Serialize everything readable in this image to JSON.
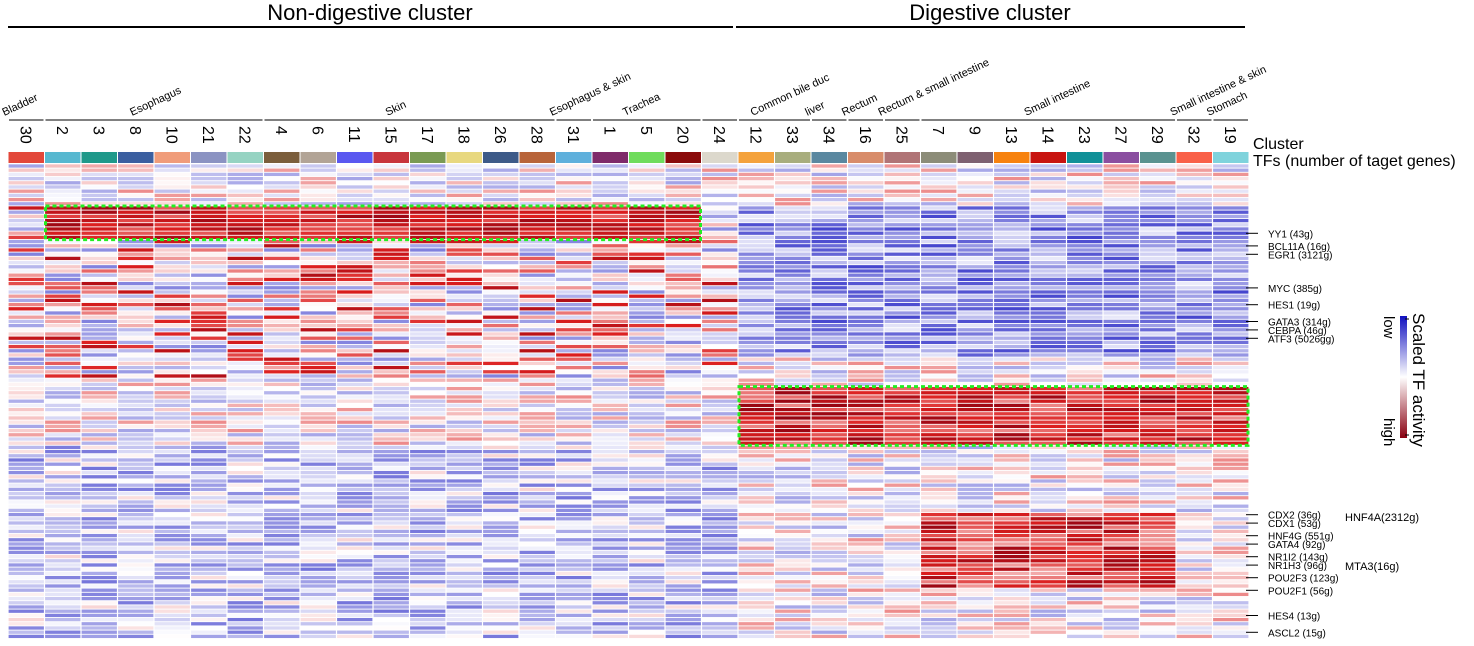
{
  "groups": {
    "nondigestive": "Non-digestive cluster",
    "digestive": "Digestive cluster"
  },
  "row_labels": {
    "cluster": "Cluster",
    "tfs": "TFs (number of taget genes)"
  },
  "tissues": [
    {
      "label": "Bladder",
      "start": 0,
      "end": 0
    },
    {
      "label": "Esophagus",
      "start": 1,
      "end": 6
    },
    {
      "label": "Skin",
      "start": 7,
      "end": 14
    },
    {
      "label": "Esophagus & skin",
      "start": 15,
      "end": 15
    },
    {
      "label": "Trachea",
      "start": 16,
      "end": 18
    },
    {
      "label": "",
      "start": 19,
      "end": 19
    },
    {
      "label": "Common bile duc",
      "start": 20,
      "end": 21
    },
    {
      "label": "liver",
      "start": 22,
      "end": 22
    },
    {
      "label": "Rectum",
      "start": 23,
      "end": 23
    },
    {
      "label": "Rectum & small intestine",
      "start": 24,
      "end": 24
    },
    {
      "label": "Small intestine",
      "start": 25,
      "end": 31
    },
    {
      "label": "Small intestine & skin",
      "start": 32,
      "end": 32
    },
    {
      "label": "Stomach",
      "start": 33,
      "end": 33
    }
  ],
  "tf_labels": [
    {
      "label": "YY1 (43g)",
      "row": 16
    },
    {
      "label": "BCL11A (16g)",
      "row": 19
    },
    {
      "label": "EGR1 (3121g)",
      "row": 21
    },
    {
      "label": "MYC (385g)",
      "row": 29
    },
    {
      "label": "HES1 (19g)",
      "row": 33
    },
    {
      "label": "GATA3 (314g)",
      "row": 37
    },
    {
      "label": "CEBPA (46g)",
      "row": 39
    },
    {
      "label": "ATF3 (5026gg)",
      "row": 41
    },
    {
      "label": "CDX2 (36g)",
      "row": 83
    },
    {
      "label": "CDX1 (53g)",
      "row": 85
    },
    {
      "label": "HNF4G (551g)",
      "row": 88
    },
    {
      "label": "GATA4 (92g)",
      "row": 90
    },
    {
      "label": "NR1I2 (143g)",
      "row": 93
    },
    {
      "label": "NR1H3 (96g)",
      "row": 95
    },
    {
      "label": "POU2F3 (123g)",
      "row": 98
    },
    {
      "label": "POU2F1 (56g)",
      "row": 101
    },
    {
      "label": "HES4 (13g)",
      "row": 107
    },
    {
      "label": "ASCL2 (15g)",
      "row": 111
    }
  ],
  "tf_groups": [
    {
      "label": "HNF4A(2312g)"
    },
    {
      "label": "MTA3(16g)"
    }
  ],
  "legend": {
    "title": "Scaled TF activity",
    "low": "low",
    "high": "high"
  },
  "chart_data": {
    "type": "heatmap",
    "title": "",
    "xlabel": "Cluster",
    "ylabel": "TFs (number of taget genes)",
    "x": [
      "30",
      "2",
      "3",
      "8",
      "10",
      "21",
      "22",
      "4",
      "6",
      "11",
      "15",
      "17",
      "18",
      "26",
      "28",
      "31",
      "1",
      "5",
      "20",
      "24",
      "12",
      "33",
      "34",
      "16",
      "25",
      "7",
      "9",
      "13",
      "14",
      "23",
      "27",
      "29",
      "32",
      "19"
    ],
    "n_rows": 113,
    "value_range": [
      -2,
      2
    ],
    "colormap": [
      "#1010c0",
      "#ffffff",
      "#8a0010"
    ],
    "cluster_colors": [
      "#e3473a",
      "#57b8d0",
      "#1f998a",
      "#3b5fa0",
      "#f09c7a",
      "#8b93c2",
      "#96d3c2",
      "#7b5e3c",
      "#b2a496",
      "#5a58f0",
      "#c8353c",
      "#7a9a53",
      "#e8d87f",
      "#3d5a88",
      "#b8643a",
      "#5fb0dc",
      "#7f2b6a",
      "#6fdc5c",
      "#8a0a0a",
      "#dcd8cc",
      "#f4a23c",
      "#a8ad7d",
      "#5a88a0",
      "#d88c6a",
      "#b07476",
      "#8c8c78",
      "#7e6070",
      "#f7820e",
      "#c81410",
      "#109098",
      "#8a4ea0",
      "#5a9290",
      "#f96048",
      "#7fd3dc"
    ],
    "highlighted_blocks": [
      {
        "clusters": [
          "2",
          "20"
        ],
        "rows": [
          10,
          17
        ]
      },
      {
        "clusters": [
          "12",
          "19"
        ],
        "rows": [
          53,
          66
        ]
      }
    ],
    "digestive_clusters": [
      "12",
      "33",
      "34",
      "16",
      "25",
      "7",
      "9",
      "13",
      "14",
      "23",
      "27",
      "29",
      "32",
      "19"
    ],
    "nondigestive_clusters": [
      "30",
      "2",
      "3",
      "8",
      "10",
      "21",
      "22",
      "4",
      "6",
      "11",
      "15",
      "17",
      "18",
      "26",
      "28",
      "31",
      "1",
      "5",
      "20",
      "24"
    ]
  }
}
